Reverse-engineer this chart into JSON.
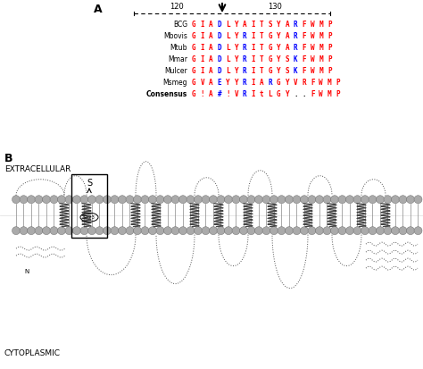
{
  "title_A": "A",
  "title_B": "B",
  "sequences": [
    {
      "label": "BCG",
      "chars": "GIADLYAITSYARFWMP",
      "colors": [
        "r",
        "r",
        "r",
        "b",
        "r",
        "r",
        "r",
        "r",
        "r",
        "r",
        "r",
        "r",
        "b",
        "r",
        "r",
        "r",
        "r"
      ]
    },
    {
      "label": "Mbovis",
      "chars": "GIADLYRITGYARFWMP",
      "colors": [
        "r",
        "r",
        "r",
        "b",
        "r",
        "r",
        "b",
        "r",
        "r",
        "r",
        "r",
        "r",
        "b",
        "r",
        "r",
        "r",
        "r"
      ]
    },
    {
      "label": "Mtub",
      "chars": "GIADLYRITGYARFWMP",
      "colors": [
        "r",
        "r",
        "r",
        "b",
        "r",
        "r",
        "b",
        "r",
        "r",
        "r",
        "r",
        "r",
        "b",
        "r",
        "r",
        "r",
        "r"
      ]
    },
    {
      "label": "Mmar",
      "chars": "GIADLYRITGYSKFWMP",
      "colors": [
        "r",
        "r",
        "r",
        "b",
        "r",
        "r",
        "b",
        "r",
        "r",
        "r",
        "r",
        "r",
        "b",
        "r",
        "r",
        "r",
        "r"
      ]
    },
    {
      "label": "Mulcer",
      "chars": "GIADLYRITGYSKFWMP",
      "colors": [
        "r",
        "r",
        "r",
        "b",
        "r",
        "r",
        "b",
        "r",
        "r",
        "r",
        "r",
        "r",
        "b",
        "r",
        "r",
        "r",
        "r"
      ]
    },
    {
      "label": "Msmeg",
      "chars": "GVAEYYRIARGYVRFWMP",
      "colors": [
        "r",
        "r",
        "r",
        "b",
        "r",
        "r",
        "b",
        "r",
        "r",
        "b",
        "r",
        "r",
        "r",
        "r",
        "r",
        "r",
        "r",
        "r"
      ]
    },
    {
      "label": "Consensus",
      "chars": "G!A#!VRItLGY..FWMP",
      "colors": [
        "r",
        "r",
        "r",
        "b",
        "r",
        "r",
        "b",
        "r",
        "r",
        "r",
        "r",
        "r",
        "k",
        "k",
        "r",
        "r",
        "r",
        "r"
      ]
    }
  ],
  "ruler_120": "120",
  "ruler_130": "130",
  "extracellular_label": "EXTRACELLULAR",
  "cytoplasmic_label": "CYTOPLASMIC",
  "bg_color": "#ffffff",
  "sphere_color": "#aaaaaa",
  "helix_color": "#444444",
  "line_color": "#888888"
}
